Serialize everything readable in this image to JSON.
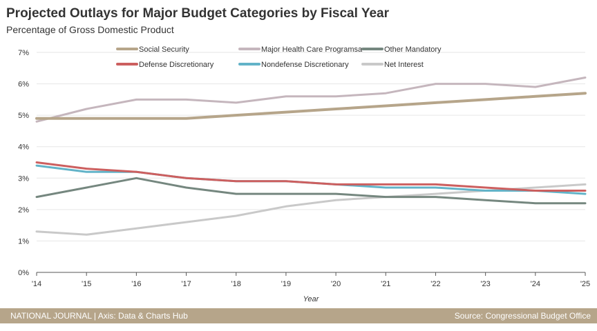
{
  "header": {
    "title": "Projected Outlays for Major Budget Categories by Fiscal Year",
    "subtitle": "Percentage of Gross Domestic Product"
  },
  "footer": {
    "left": "NATIONAL JOURNAL  |  Axis: Data & Charts Hub",
    "right": "Source: Congressional Budget Office",
    "background": "#b6a58a"
  },
  "chart_data": {
    "type": "line",
    "x": [
      "'14",
      "'15",
      "'16",
      "'17",
      "'18",
      "'19",
      "'20",
      "'21",
      "'22",
      "'23",
      "'24",
      "'25"
    ],
    "xlabel": "Year",
    "ylabel": "",
    "yticks": [
      "0%",
      "1%",
      "2%",
      "3%",
      "4%",
      "5%",
      "6%",
      "7%"
    ],
    "ylim": [
      0,
      7
    ],
    "grid": "horizontal",
    "legend_position": "top",
    "series": [
      {
        "name": "Social Security",
        "color": "#b6a58a",
        "width": 4,
        "values": [
          4.9,
          4.9,
          4.9,
          4.9,
          5.0,
          5.1,
          5.2,
          5.3,
          5.4,
          5.5,
          5.6,
          5.7
        ]
      },
      {
        "name": "Major Health Care Programsa",
        "color": "#c5b6bd",
        "width": 3,
        "values": [
          4.8,
          5.2,
          5.5,
          5.5,
          5.4,
          5.6,
          5.6,
          5.7,
          6.0,
          6.0,
          5.9,
          6.2
        ]
      },
      {
        "name": "Other Mandatory",
        "color": "#75877f",
        "width": 3,
        "values": [
          2.4,
          2.7,
          3.0,
          2.7,
          2.5,
          2.5,
          2.5,
          2.4,
          2.4,
          2.3,
          2.2,
          2.2
        ]
      },
      {
        "name": "Defense Discretionary",
        "color": "#cc5f5f",
        "width": 3,
        "values": [
          3.5,
          3.3,
          3.2,
          3.0,
          2.9,
          2.9,
          2.8,
          2.8,
          2.8,
          2.7,
          2.6,
          2.6
        ]
      },
      {
        "name": "Nondefense Discretionary",
        "color": "#62b3c8",
        "width": 3,
        "values": [
          3.4,
          3.2,
          3.2,
          3.0,
          2.9,
          2.9,
          2.8,
          2.7,
          2.7,
          2.6,
          2.6,
          2.5
        ]
      },
      {
        "name": "Net Interest",
        "color": "#c9c9c9",
        "width": 3,
        "values": [
          1.3,
          1.2,
          1.4,
          1.6,
          1.8,
          2.1,
          2.3,
          2.4,
          2.5,
          2.6,
          2.7,
          2.8
        ]
      }
    ]
  }
}
